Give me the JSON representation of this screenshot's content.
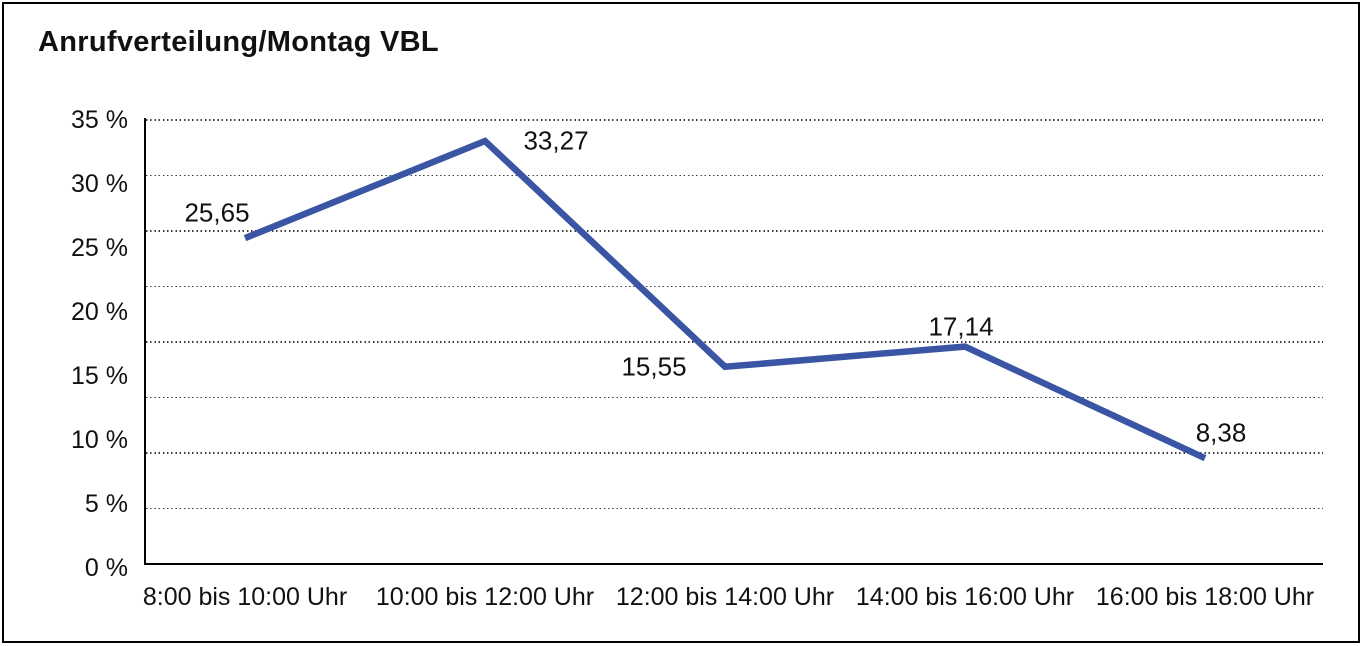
{
  "page_title": "Anrufverteilung/Montag VBL",
  "chart_data": {
    "type": "line",
    "title": "Anrufverteilung/Montag VBL",
    "categories": [
      "8:00 bis 10:00 Uhr",
      "10:00 bis 12:00 Uhr",
      "12:00 bis 14:00 Uhr",
      "14:00 bis 16:00 Uhr",
      "16:00 bis 18:00 Uhr"
    ],
    "values": [
      25.65,
      33.27,
      15.55,
      17.14,
      8.38
    ],
    "point_labels": [
      "25,65",
      "33,27",
      "15,55",
      "17,14",
      "8,38"
    ],
    "y_tick_labels": [
      "35 %",
      "30 %",
      "25 %",
      "20 %",
      "15 %",
      "10 %",
      "5 %",
      "0 %"
    ],
    "ylim": [
      0,
      35
    ],
    "ytick_step": 5,
    "xlabel": "",
    "ylabel": "",
    "legend": "none",
    "grid": "horizontal dotted, 8 dotted lines plus solid baseline",
    "line_color": "#3a55a3",
    "text_color": "#111111",
    "background_color": "#ffffff",
    "border_color": "#000000"
  }
}
